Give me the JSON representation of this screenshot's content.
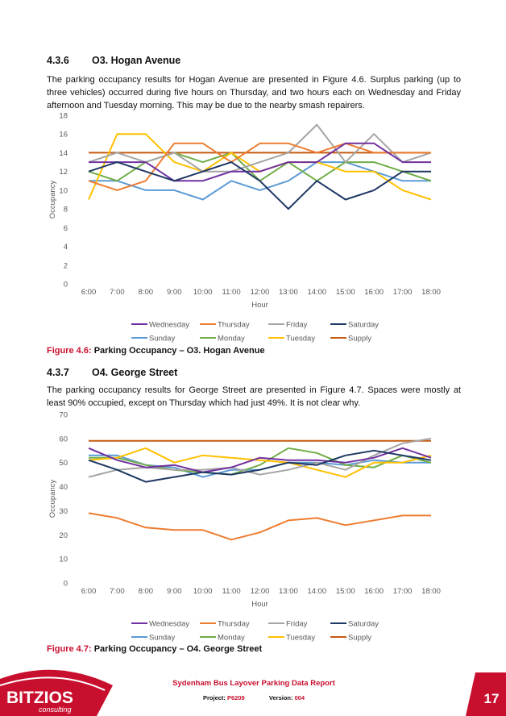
{
  "section1": {
    "number": "4.3.6",
    "title": "O3. Hogan Avenue",
    "paragraph": "The parking occupancy results for Hogan Avenue are presented in Figure 4.6. Surplus parking (up to three vehicles) occurred during five hours on Thursday, and two hours each on Wednesday and Friday afternoon and Tuesday morning. This may be due to the nearby smash repairers.",
    "caption_label": "Figure 4.6:",
    "caption_title": "Parking Occupancy – O3. Hogan Avenue"
  },
  "section2": {
    "number": "4.3.7",
    "title": "O4. George Street",
    "paragraph": "The parking occupancy results for George Street are presented in Figure 4.7. Spaces were mostly at least 90% occupied, except on Thursday which had just 49%. It is not clear why.",
    "caption_label": "Figure 4.7:",
    "caption_title": "Parking Occupancy – O4. George Street"
  },
  "colors": {
    "Wednesday": "#7030a0",
    "Thursday": "#ed7d31",
    "Friday": "#a5a5a5",
    "Saturday": "#1f3864",
    "Sunday": "#5b9bd5",
    "Monday": "#70ad47",
    "Tuesday": "#ffc000",
    "Supply": "#c55a11"
  },
  "chart_data": [
    {
      "type": "line",
      "xlabel": "Hour",
      "ylabel": "Occupancy",
      "ylim": [
        0,
        18
      ],
      "yticks": [
        0,
        2,
        4,
        6,
        8,
        10,
        12,
        14,
        16,
        18
      ],
      "grid": false,
      "legend_position": "bottom",
      "categories": [
        "6:00",
        "7:00",
        "8:00",
        "9:00",
        "10:00",
        "11:00",
        "12:00",
        "13:00",
        "14:00",
        "15:00",
        "16:00",
        "17:00",
        "18:00"
      ],
      "series": [
        {
          "name": "Wednesday",
          "values": [
            13,
            13,
            13,
            11,
            11,
            12,
            12,
            13,
            13,
            15,
            15,
            13,
            13
          ]
        },
        {
          "name": "Thursday",
          "values": [
            11,
            10,
            11,
            15,
            15,
            13,
            15,
            15,
            14,
            15,
            14,
            14,
            14
          ]
        },
        {
          "name": "Friday",
          "values": [
            13,
            14,
            13,
            14,
            12,
            12,
            13,
            14,
            17,
            13,
            16,
            13,
            14
          ]
        },
        {
          "name": "Saturday",
          "values": [
            12,
            13,
            12,
            11,
            12,
            13,
            11,
            8,
            11,
            9,
            10,
            12,
            12
          ]
        },
        {
          "name": "Sunday",
          "values": [
            11,
            11,
            10,
            10,
            9,
            11,
            10,
            11,
            13,
            13,
            12,
            11,
            11
          ]
        },
        {
          "name": "Monday",
          "values": [
            12,
            11,
            13,
            14,
            13,
            14,
            11,
            13,
            11,
            13,
            13,
            12,
            11
          ]
        },
        {
          "name": "Tuesday",
          "values": [
            9,
            16,
            16,
            13,
            12,
            14,
            12,
            13,
            13,
            12,
            12,
            10,
            9
          ]
        },
        {
          "name": "Supply",
          "values": [
            14,
            14,
            14,
            14,
            14,
            14,
            14,
            14,
            14,
            14,
            14,
            14,
            14
          ]
        }
      ]
    },
    {
      "type": "line",
      "xlabel": "Hour",
      "ylabel": "Occupancy",
      "ylim": [
        0,
        70
      ],
      "yticks": [
        0,
        10,
        20,
        30,
        40,
        50,
        60,
        70
      ],
      "grid": false,
      "legend_position": "bottom",
      "categories": [
        "6:00",
        "7:00",
        "8:00",
        "9:00",
        "10:00",
        "11:00",
        "12:00",
        "13:00",
        "14:00",
        "15:00",
        "16:00",
        "17:00",
        "18:00"
      ],
      "series": [
        {
          "name": "Wednesday",
          "values": [
            56,
            51,
            48,
            49,
            46,
            48,
            52,
            51,
            51,
            50,
            52,
            56,
            52
          ]
        },
        {
          "name": "Thursday",
          "values": [
            29,
            27,
            23,
            22,
            22,
            18,
            21,
            26,
            27,
            24,
            26,
            28,
            28
          ]
        },
        {
          "name": "Friday",
          "values": [
            44,
            47,
            48,
            47,
            47,
            48,
            45,
            47,
            50,
            47,
            53,
            58,
            60
          ]
        },
        {
          "name": "Saturday",
          "values": [
            51,
            47,
            42,
            44,
            46,
            45,
            47,
            50,
            49,
            53,
            55,
            53,
            51
          ]
        },
        {
          "name": "Sunday",
          "values": [
            53,
            53,
            49,
            48,
            44,
            47,
            47,
            50,
            50,
            49,
            51,
            50,
            50
          ]
        },
        {
          "name": "Monday",
          "values": [
            52,
            52,
            49,
            47,
            46,
            45,
            49,
            56,
            54,
            49,
            48,
            53,
            50
          ]
        },
        {
          "name": "Tuesday",
          "values": [
            51,
            52,
            56,
            50,
            53,
            52,
            51,
            50,
            47,
            44,
            50,
            50,
            53
          ]
        },
        {
          "name": "Supply",
          "values": [
            59,
            59,
            59,
            59,
            59,
            59,
            59,
            59,
            59,
            59,
            59,
            59,
            59
          ]
        }
      ]
    }
  ],
  "footer": {
    "logo_main": "BITZIOS",
    "logo_sub": "consulting",
    "report_title": "Sydenham Bus Layover Parking Data Report",
    "project_label": "Project:",
    "project_value": "P6209",
    "version_label": "Version:",
    "version_value": "004",
    "page_number": "17"
  }
}
